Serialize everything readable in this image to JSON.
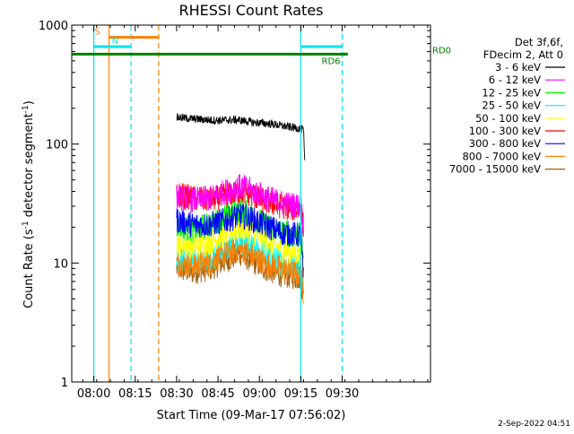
{
  "chart_data": {
    "type": "line",
    "title": "RHESSI Count Rates",
    "xlabel": "Start Time (09-Mar-17 07:56:02)",
    "ylabel_parts": [
      "Count Rate (s",
      "-1",
      " detector segment",
      "-1",
      ")"
    ],
    "yscale": "log",
    "ylim": [
      1,
      1000
    ],
    "xlim_min": [
      -4,
      126
    ],
    "x_ticks": [
      {
        "min": 4,
        "label": "08:00"
      },
      {
        "min": 19,
        "label": "08:15"
      },
      {
        "min": 34,
        "label": "08:30"
      },
      {
        "min": 49,
        "label": "08:45"
      },
      {
        "min": 64,
        "label": "09:00"
      },
      {
        "min": 79,
        "label": "09:15"
      },
      {
        "min": 94,
        "label": "09:30"
      }
    ],
    "y_ticks": [
      {
        "v": 1,
        "label": "1"
      },
      {
        "v": 10,
        "label": "10"
      },
      {
        "v": 100,
        "label": "100"
      },
      {
        "v": 1000,
        "label": "1000"
      }
    ],
    "legend_header": [
      "Det 3f,6f,",
      "FDecim 2, Att 0"
    ],
    "series": [
      {
        "name": "3 - 6 keV",
        "color": "#000000",
        "t": [
          34,
          40,
          48,
          56,
          62,
          68,
          74,
          79,
          80,
          80.5
        ],
        "v": [
          168,
          163,
          158,
          160,
          152,
          148,
          140,
          135,
          130,
          62
        ]
      },
      {
        "name": "6 - 12 keV",
        "color": "#ff00ff",
        "t": [
          34,
          40,
          46,
          52,
          57,
          60,
          66,
          72,
          79,
          80
        ],
        "v": [
          36,
          34,
          35,
          40,
          44,
          42,
          36,
          32,
          30,
          20
        ]
      },
      {
        "name": "12 - 25 keV",
        "color": "#00ff00",
        "t": [
          34,
          40,
          46,
          52,
          57,
          60,
          66,
          72,
          79,
          80
        ],
        "v": [
          21,
          19,
          21,
          25,
          28,
          26,
          21,
          18,
          17,
          12
        ]
      },
      {
        "name": "25 - 50 keV",
        "color": "#00ffff",
        "t": [
          34,
          40,
          46,
          52,
          57,
          60,
          66,
          72,
          79,
          80
        ],
        "v": [
          11,
          10,
          11,
          13,
          15,
          14,
          12,
          10,
          9,
          7
        ]
      },
      {
        "name": "50 - 100 keV",
        "color": "#ffff00",
        "t": [
          34,
          40,
          46,
          52,
          57,
          60,
          66,
          72,
          79,
          80
        ],
        "v": [
          15,
          14,
          15,
          18,
          20,
          19,
          16,
          13,
          12,
          8
        ]
      },
      {
        "name": "100 - 300 keV",
        "color": "#ff0000",
        "t": [
          34,
          40,
          46,
          52,
          57,
          60,
          66,
          72,
          79,
          80
        ],
        "v": [
          38,
          35,
          34,
          37,
          40,
          38,
          33,
          30,
          28,
          20
        ]
      },
      {
        "name": "300 - 800 keV",
        "color": "#0000ff",
        "t": [
          34,
          40,
          46,
          52,
          57,
          60,
          66,
          72,
          79,
          80
        ],
        "v": [
          23,
          21,
          21,
          23,
          25,
          24,
          21,
          18,
          17,
          7
        ]
      },
      {
        "name": "800 - 7000 keV",
        "color": "#ff8000",
        "t": [
          34,
          40,
          46,
          52,
          57,
          60,
          66,
          72,
          79,
          80
        ],
        "v": [
          10,
          9.5,
          10,
          12,
          13,
          12,
          10,
          9,
          8,
          5.5
        ]
      },
      {
        "name": "7000 - 15000 keV",
        "color": "#a06010",
        "t": [
          34,
          40,
          46,
          52,
          57,
          60,
          66,
          72,
          79,
          80
        ],
        "v": [
          9,
          8.5,
          9,
          10.5,
          12,
          11,
          9,
          8,
          7.5,
          5
        ]
      }
    ],
    "annotations": {
      "vlines": [
        {
          "min": 4,
          "color": "#00e5ee",
          "style": "solid"
        },
        {
          "min": 9.5,
          "color": "#ff8000",
          "style": "solid"
        },
        {
          "min": 17.5,
          "color": "#00e5ee",
          "style": "dashed"
        },
        {
          "min": 27.5,
          "color": "#ff8000",
          "style": "dashed"
        },
        {
          "min": 79,
          "color": "#00e5ee",
          "style": "solid"
        },
        {
          "min": 94,
          "color": "#00e5ee",
          "style": "dashed"
        }
      ],
      "bars": [
        {
          "label": "S",
          "color": "#ff8000",
          "from": 9.5,
          "to": 27.5,
          "level": 790
        },
        {
          "label": "N",
          "color": "#00e5ee",
          "from": 4,
          "to": 17.5,
          "level": 660
        },
        {
          "label": "",
          "color": "#00e5ee",
          "from": 79,
          "to": 94,
          "level": 660
        },
        {
          "label": "RD6",
          "color": "#008000",
          "from": -4,
          "to": 96,
          "level": 570
        },
        {
          "label": "RD0",
          "color": "#008000",
          "from": 94,
          "to": 96,
          "level": 570
        }
      ]
    },
    "footer": "2-Sep-2022 04:51"
  }
}
